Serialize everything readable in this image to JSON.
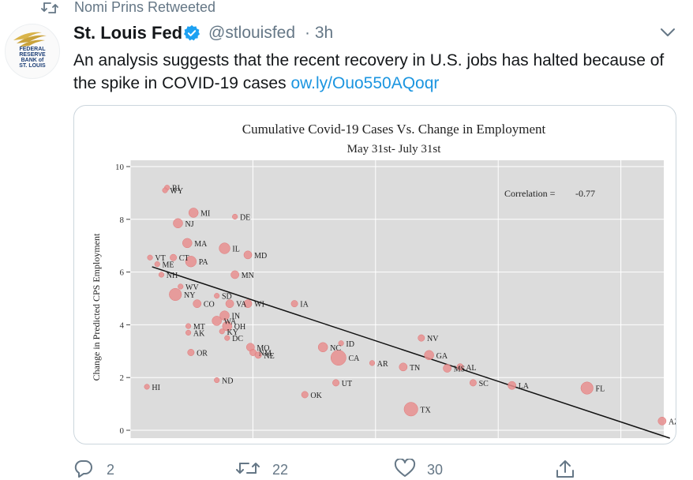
{
  "retweet": {
    "label": "Nomi Prins Retweeted"
  },
  "author": {
    "name": "St. Louis Fed",
    "handle": "@stlouisfed",
    "time": "· 3h",
    "avatar_text": [
      "FEDERAL",
      "RESERVE",
      "BANK of",
      "ST. LOUIS"
    ]
  },
  "tweet": {
    "text": "An analysis suggests that the recent recovery in U.S. jobs has halted because of the spike in COVID-19 cases",
    "link": "ow.ly/Ouo550AQoqr"
  },
  "actions": {
    "replies": "2",
    "retweets": "22",
    "likes": "30"
  },
  "colors": {
    "accent": "#1b95e0",
    "muted": "#657786",
    "plot_bg": "#dcdcdc",
    "point": "#e88f8f"
  },
  "chart_data": {
    "type": "scatter",
    "title": "Cumulative Covid-19 Cases Vs. Change in Employment",
    "subtitle": "May 31st- July 31st",
    "ylabel": "Change in Predicted CPS Employment",
    "xlabel": "",
    "ylim": [
      0,
      10
    ],
    "xlim": [
      0,
      10
    ],
    "yticks": [
      0,
      2,
      4,
      6,
      8,
      10
    ],
    "annotation": {
      "label": "Correlation =",
      "value": "-0.77"
    },
    "trendline": {
      "x0": 0.3,
      "y0": 6.2,
      "x1": 10.3,
      "y1": -0.3
    },
    "points": [
      {
        "s": "RI",
        "x": 0.59,
        "y": 9.2,
        "size": 2
      },
      {
        "s": "WY",
        "x": 0.55,
        "y": 9.1,
        "size": 2
      },
      {
        "s": "MI",
        "x": 1.1,
        "y": 8.25,
        "size": 5
      },
      {
        "s": "DE",
        "x": 1.9,
        "y": 8.1,
        "size": 2
      },
      {
        "s": "NJ",
        "x": 0.8,
        "y": 7.85,
        "size": 5
      },
      {
        "s": "MA",
        "x": 0.98,
        "y": 7.1,
        "size": 5
      },
      {
        "s": "IL",
        "x": 1.7,
        "y": 6.9,
        "size": 6
      },
      {
        "s": "MD",
        "x": 2.15,
        "y": 6.65,
        "size": 4
      },
      {
        "s": "VT",
        "x": 0.26,
        "y": 6.55,
        "size": 2
      },
      {
        "s": "CT",
        "x": 0.71,
        "y": 6.55,
        "size": 3
      },
      {
        "s": "PA",
        "x": 1.05,
        "y": 6.4,
        "size": 6
      },
      {
        "s": "ME",
        "x": 0.4,
        "y": 6.3,
        "size": 2
      },
      {
        "s": "NH",
        "x": 0.48,
        "y": 5.9,
        "size": 2
      },
      {
        "s": "MN",
        "x": 1.9,
        "y": 5.9,
        "size": 4
      },
      {
        "s": "WV",
        "x": 0.85,
        "y": 5.45,
        "size": 2
      },
      {
        "s": "NY",
        "x": 0.75,
        "y": 5.15,
        "size": 7
      },
      {
        "s": "SD",
        "x": 1.55,
        "y": 5.1,
        "size": 2
      },
      {
        "s": "CO",
        "x": 1.17,
        "y": 4.8,
        "size": 4
      },
      {
        "s": "VA",
        "x": 1.8,
        "y": 4.8,
        "size": 4
      },
      {
        "s": "WI",
        "x": 2.15,
        "y": 4.8,
        "size": 4
      },
      {
        "s": "IA",
        "x": 3.05,
        "y": 4.8,
        "size": 3
      },
      {
        "s": "IN",
        "x": 1.7,
        "y": 4.35,
        "size": 5
      },
      {
        "s": "WA",
        "x": 1.55,
        "y": 4.15,
        "size": 5
      },
      {
        "s": "OH",
        "x": 1.75,
        "y": 3.95,
        "size": 5
      },
      {
        "s": "MT",
        "x": 1.0,
        "y": 3.95,
        "size": 2
      },
      {
        "s": "AK",
        "x": 1.0,
        "y": 3.7,
        "size": 2
      },
      {
        "s": "KY",
        "x": 1.65,
        "y": 3.75,
        "size": 2
      },
      {
        "s": "DC",
        "x": 1.75,
        "y": 3.5,
        "size": 2
      },
      {
        "s": "MO",
        "x": 2.2,
        "y": 3.15,
        "size": 4
      },
      {
        "s": "NM",
        "x": 2.25,
        "y": 2.95,
        "size": 3
      },
      {
        "s": "NE",
        "x": 2.35,
        "y": 2.85,
        "size": 3
      },
      {
        "s": "OR",
        "x": 1.05,
        "y": 2.95,
        "size": 3
      },
      {
        "s": "NC",
        "x": 3.6,
        "y": 3.15,
        "size": 5
      },
      {
        "s": "ID",
        "x": 3.95,
        "y": 3.3,
        "size": 2
      },
      {
        "s": "CA",
        "x": 3.9,
        "y": 2.75,
        "size": 9
      },
      {
        "s": "NV",
        "x": 5.5,
        "y": 3.5,
        "size": 3
      },
      {
        "s": "GA",
        "x": 5.65,
        "y": 2.85,
        "size": 5
      },
      {
        "s": "AR",
        "x": 4.55,
        "y": 2.55,
        "size": 2
      },
      {
        "s": "TN",
        "x": 5.15,
        "y": 2.4,
        "size": 4
      },
      {
        "s": "AL",
        "x": 6.25,
        "y": 2.4,
        "size": 3
      },
      {
        "s": "MS",
        "x": 6.0,
        "y": 2.35,
        "size": 4
      },
      {
        "s": "SC",
        "x": 6.5,
        "y": 1.8,
        "size": 3
      },
      {
        "s": "LA",
        "x": 7.25,
        "y": 1.7,
        "size": 4
      },
      {
        "s": "FL",
        "x": 8.7,
        "y": 1.6,
        "size": 7
      },
      {
        "s": "ND",
        "x": 1.55,
        "y": 1.9,
        "size": 2
      },
      {
        "s": "HI",
        "x": 0.2,
        "y": 1.65,
        "size": 2
      },
      {
        "s": "UT",
        "x": 3.85,
        "y": 1.8,
        "size": 3
      },
      {
        "s": "OK",
        "x": 3.25,
        "y": 1.35,
        "size": 3
      },
      {
        "s": "TX",
        "x": 5.3,
        "y": 0.8,
        "size": 8
      },
      {
        "s": "AZ",
        "x": 10.15,
        "y": 0.35,
        "size": 4
      }
    ]
  }
}
